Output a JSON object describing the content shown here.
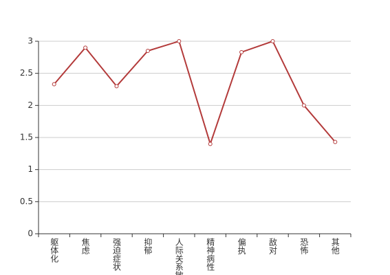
{
  "chart_data": {
    "type": "line",
    "categories": [
      "躯体化",
      "焦虑",
      "强迫症状",
      "抑郁",
      "人际关系敏感",
      "精神病性",
      "偏执",
      "敌对",
      "恐怖",
      "其他"
    ],
    "series": [
      {
        "color": "#b33a3a",
        "values": [
          2.33,
          2.9,
          2.3,
          2.85,
          3.0,
          1.4,
          2.83,
          3.0,
          2.0,
          1.43
        ]
      }
    ],
    "ylim": [
      0,
      3
    ],
    "yticks": [
      0,
      0.5,
      1,
      1.5,
      2,
      2.5,
      3
    ],
    "grid": true
  }
}
